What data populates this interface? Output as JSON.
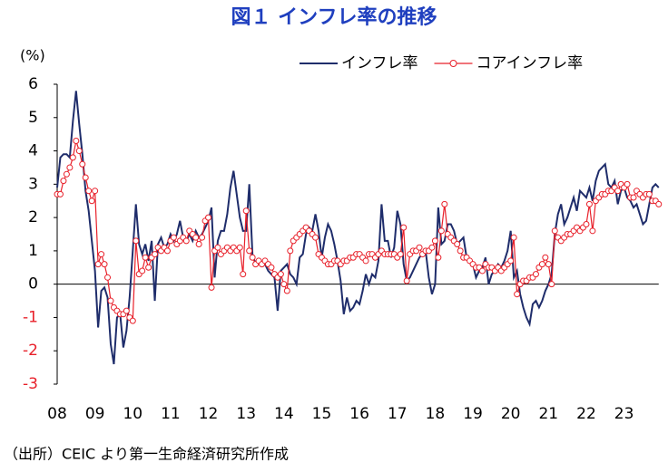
{
  "chart_data": {
    "type": "line",
    "title": "図１ インフレ率の推移",
    "ylabel": "(%)",
    "source": "（出所）CEIC より第一生命経済研究所作成",
    "categories": [
      "08",
      null,
      null,
      null,
      null,
      null,
      null,
      null,
      null,
      null,
      null,
      null,
      "09",
      null,
      null,
      null,
      null,
      null,
      null,
      null,
      null,
      null,
      null,
      null,
      "10",
      null,
      null,
      null,
      null,
      null,
      null,
      null,
      null,
      null,
      null,
      null,
      "11",
      null,
      null,
      null,
      null,
      null,
      null,
      null,
      null,
      null,
      null,
      null,
      "12",
      null,
      null,
      null,
      null,
      null,
      null,
      null,
      null,
      null,
      null,
      null,
      "13",
      null,
      null,
      null,
      null,
      null,
      null,
      null,
      null,
      null,
      null,
      null,
      "14",
      null,
      null,
      null,
      null,
      null,
      null,
      null,
      null,
      null,
      null,
      null,
      "15",
      null,
      null,
      null,
      null,
      null,
      null,
      null,
      null,
      null,
      null,
      null,
      "16",
      null,
      null,
      null,
      null,
      null,
      null,
      null,
      null,
      null,
      null,
      null,
      "17",
      null,
      null,
      null,
      null,
      null,
      null,
      null,
      null,
      null,
      null,
      null,
      "18",
      null,
      null,
      null,
      null,
      null,
      null,
      null,
      null,
      null,
      null,
      null,
      "19",
      null,
      null,
      null,
      null,
      null,
      null,
      null,
      null,
      null,
      null,
      null,
      "20",
      null,
      null,
      null,
      null,
      null,
      null,
      null,
      null,
      null,
      null,
      null,
      "21",
      null,
      null,
      null,
      null,
      null,
      null,
      null,
      null,
      null,
      null,
      null,
      "22",
      null,
      null,
      null,
      null,
      null,
      null,
      null,
      null,
      null,
      null,
      null,
      "23",
      null,
      null,
      null,
      null,
      null,
      null,
      null,
      null,
      null,
      null,
      null
    ],
    "series": [
      {
        "name": "インフレ率",
        "color": "#1f2d6b",
        "markers": false,
        "values": [
          2.9,
          3.8,
          3.9,
          3.9,
          3.8,
          4.9,
          5.8,
          4.8,
          3.9,
          2.8,
          2.2,
          1.3,
          0.4,
          -1.3,
          -0.2,
          -0.1,
          -0.4,
          -1.8,
          -2.4,
          -1.0,
          -0.9,
          -1.9,
          -1.4,
          -0.4,
          1.0,
          2.4,
          1.2,
          0.9,
          1.2,
          0.7,
          1.3,
          -0.5,
          1.2,
          1.4,
          1.1,
          1.2,
          1.5,
          1.3,
          1.5,
          1.9,
          1.4,
          1.3,
          1.5,
          1.3,
          1.6,
          1.4,
          1.5,
          1.7,
          1.9,
          2.3,
          0.2,
          1.3,
          1.6,
          1.6,
          2.1,
          2.9,
          3.4,
          2.7,
          2.0,
          1.6,
          1.6,
          3.0,
          0.9,
          0.6,
          0.7,
          0.6,
          0.6,
          0.4,
          0.3,
          0.2,
          -0.8,
          0.4,
          0.5,
          0.6,
          0.3,
          0.2,
          0.0,
          0.8,
          0.9,
          1.5,
          1.7,
          1.6,
          2.1,
          1.6,
          0.8,
          1.4,
          1.8,
          1.6,
          1.2,
          0.7,
          0.1,
          -0.9,
          -0.4,
          -0.8,
          -0.7,
          -0.5,
          -0.6,
          -0.2,
          0.3,
          0.0,
          0.3,
          0.2,
          0.7,
          2.4,
          1.3,
          1.3,
          0.8,
          1.1,
          2.2,
          1.8,
          0.6,
          0.1,
          0.2,
          0.4,
          0.6,
          0.8,
          0.9,
          1.0,
          0.2,
          -0.3,
          0.0,
          2.3,
          1.2,
          1.3,
          1.8,
          1.8,
          1.6,
          1.2,
          1.3,
          1.4,
          0.8,
          0.7,
          0.6,
          0.2,
          0.4,
          0.5,
          0.8,
          0.0,
          0.3,
          0.4,
          0.6,
          0.5,
          0.7,
          1.0,
          1.6,
          0.2,
          0.4,
          -0.3,
          -0.7,
          -1.0,
          -1.2,
          -0.6,
          -0.5,
          -0.7,
          -0.5,
          -0.2,
          0.0,
          0.3,
          1.5,
          2.1,
          2.4,
          1.8,
          2.0,
          2.3,
          2.6,
          2.2,
          2.8,
          2.7,
          2.6,
          2.9,
          2.5,
          3.1,
          3.4,
          3.5,
          3.6,
          3.0,
          2.9,
          3.1,
          2.4,
          2.8,
          2.9,
          2.6,
          2.5,
          2.3,
          2.4,
          2.1,
          1.8,
          1.9,
          2.4,
          2.9,
          3.0,
          2.9
        ]
      },
      {
        "name": "コアインフレ率",
        "color": "#e8202a",
        "markers": true,
        "values": [
          2.7,
          2.7,
          3.1,
          3.3,
          3.5,
          3.8,
          4.3,
          4.0,
          3.6,
          3.2,
          2.8,
          2.5,
          2.8,
          0.6,
          0.9,
          0.6,
          0.2,
          -0.5,
          -0.7,
          -0.8,
          -0.9,
          -0.9,
          -0.8,
          -1.0,
          -1.1,
          1.3,
          0.3,
          0.4,
          0.8,
          0.5,
          0.8,
          0.9,
          1.1,
          1.0,
          1.1,
          1.0,
          1.3,
          1.4,
          1.2,
          1.3,
          1.4,
          1.3,
          1.6,
          1.5,
          1.4,
          1.2,
          1.4,
          1.9,
          2.0,
          -0.1,
          1.0,
          1.1,
          0.9,
          1.0,
          1.1,
          1.0,
          1.1,
          1.0,
          1.1,
          0.3,
          2.2,
          1.0,
          0.8,
          0.6,
          0.7,
          0.6,
          0.7,
          0.6,
          0.5,
          0.3,
          0.2,
          0.3,
          0.0,
          -0.2,
          1.0,
          1.3,
          1.4,
          1.5,
          1.6,
          1.7,
          1.6,
          1.5,
          1.4,
          0.9,
          0.8,
          0.7,
          0.6,
          0.6,
          0.7,
          0.7,
          0.6,
          0.7,
          0.7,
          0.8,
          0.8,
          0.9,
          0.9,
          0.8,
          0.7,
          0.9,
          0.9,
          0.8,
          0.9,
          1.0,
          0.9,
          0.9,
          0.9,
          0.9,
          0.8,
          0.9,
          1.7,
          0.1,
          0.9,
          1.0,
          1.0,
          1.1,
          0.9,
          1.0,
          1.0,
          1.1,
          1.3,
          0.8,
          1.6,
          2.4,
          1.5,
          1.4,
          1.3,
          1.2,
          1.0,
          0.8,
          0.8,
          0.7,
          0.6,
          0.5,
          0.5,
          0.4,
          0.6,
          0.5,
          0.5,
          0.4,
          0.5,
          0.4,
          0.5,
          0.6,
          0.7,
          1.4,
          -0.3,
          0.0,
          0.1,
          0.1,
          0.2,
          0.2,
          0.3,
          0.5,
          0.6,
          0.8,
          0.6,
          0.0,
          1.6,
          1.4,
          1.3,
          1.4,
          1.5,
          1.5,
          1.6,
          1.7,
          1.6,
          1.7,
          1.8,
          2.4,
          1.6,
          2.5,
          2.6,
          2.7,
          2.7,
          2.8,
          2.8,
          2.9,
          2.8,
          3.0,
          2.9,
          3.0,
          2.6,
          2.6,
          2.8,
          2.7,
          2.6,
          2.7,
          2.7,
          2.5,
          2.5,
          2.4
        ]
      }
    ],
    "ylim": [
      -3,
      6
    ],
    "yticks": [
      -3,
      -2,
      -1,
      0,
      1,
      2,
      3,
      4,
      5,
      6
    ],
    "negative_ytick_color": "#e8202a",
    "title_color": "#1f3fbf",
    "grid": false,
    "legend": "top-right"
  }
}
